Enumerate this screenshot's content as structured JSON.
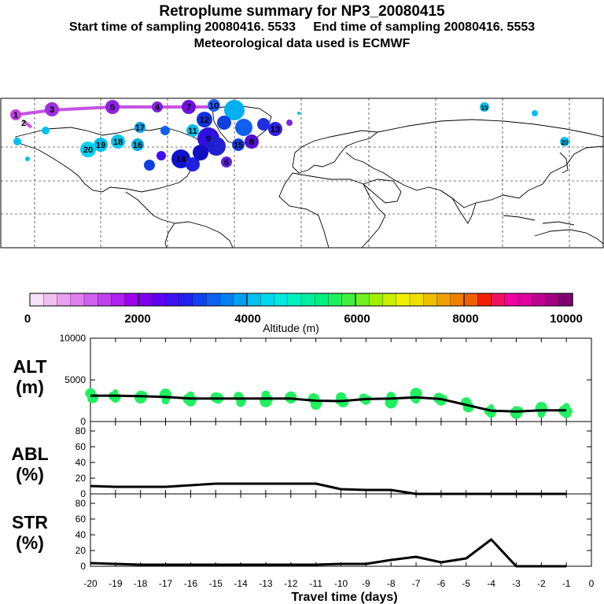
{
  "header": {
    "title": "Retroplume summary for NP3_20080415",
    "start_label": "Start time of sampling 20080416.  5533",
    "end_label": "End time of sampling 20080416.  5553",
    "met_label": "Meteorological data used is ECMWF"
  },
  "map": {
    "labels": [
      {
        "text": "1",
        "color": "#c040e0"
      },
      {
        "text": "3",
        "color": "#a030e0"
      },
      {
        "text": "5",
        "color": "#9020e0"
      },
      {
        "text": "7",
        "color": "#7010e0"
      },
      {
        "text": "10",
        "color": "#2060f0"
      },
      {
        "text": "8",
        "color": "#1010d0"
      },
      {
        "text": "12",
        "color": "#1030e0"
      },
      {
        "text": "11",
        "color": "#00c0f0"
      },
      {
        "text": "16",
        "color": "#00b0e0"
      },
      {
        "text": "18",
        "color": "#00c8f0"
      },
      {
        "text": "19",
        "color": "#00c0f0"
      },
      {
        "text": "20",
        "color": "#00d0f0"
      },
      {
        "text": "14",
        "color": "#1010c0"
      },
      {
        "text": "15",
        "color": "#1040e0"
      },
      {
        "text": "13",
        "color": "#5010d0"
      },
      {
        "text": "9",
        "color": "#2020e0"
      },
      {
        "text": "17",
        "color": "#00a0f0"
      },
      {
        "text": "4",
        "color": "#8020e0"
      },
      {
        "text": "6",
        "color": "#6020e0"
      },
      {
        "text": "2",
        "color": "#b030e0"
      }
    ]
  },
  "colorbar": {
    "label": "Altitude (m)",
    "ticks": [
      "0",
      "2000",
      "4000",
      "6000",
      "8000",
      "10000"
    ],
    "colors": [
      "#f8e0f8",
      "#f0c0f0",
      "#e8a0f0",
      "#e080f0",
      "#d060f0",
      "#c040f0",
      "#b020f0",
      "#a000f0",
      "#8000f0",
      "#6000f0",
      "#4010f0",
      "#2020f0",
      "#1040f0",
      "#1060f0",
      "#0080f0",
      "#00a0f0",
      "#00c0f0",
      "#00d8f0",
      "#00e8e0",
      "#00f0c0",
      "#00f0a0",
      "#00f080",
      "#20f060",
      "#40f040",
      "#70f020",
      "#a0f000",
      "#c8f000",
      "#f0f000",
      "#f0e000",
      "#f0c000",
      "#f0a000",
      "#f08000",
      "#f06000",
      "#f02000",
      "#f01060",
      "#f000a0",
      "#e000a0",
      "#c00090",
      "#a00080",
      "#800070"
    ],
    "ymax": 10000
  },
  "chart_data": [
    {
      "type": "line",
      "panel": "ALT",
      "ylabel": "ALT\n(m)",
      "ylabel_line1": "ALT",
      "ylabel_line2": "(m)",
      "ylim": [
        0,
        10000
      ],
      "yticks": [
        "0",
        "5000",
        "10000"
      ],
      "x": [
        -20,
        -19,
        -18,
        -17,
        -16,
        -15,
        -14,
        -13,
        -12,
        -11,
        -10,
        -9,
        -8,
        -7,
        -6,
        -5,
        -4,
        -3,
        -2,
        -1
      ],
      "values": [
        3100,
        3100,
        3050,
        2950,
        2750,
        2750,
        2750,
        2750,
        2750,
        2500,
        2450,
        2700,
        2750,
        2900,
        2700,
        2000,
        1300,
        1200,
        1350,
        1350
      ],
      "dot_color": "#20f060"
    },
    {
      "type": "line",
      "panel": "ABL",
      "ylabel_line1": "ABL",
      "ylabel_line2": "(%)",
      "ylim": [
        0,
        90
      ],
      "yticks": [
        "0",
        "20",
        "40",
        "60",
        "80"
      ],
      "x": [
        -20,
        -19,
        -18,
        -17,
        -16,
        -15,
        -14,
        -13,
        -12,
        -11,
        -10,
        -9,
        -8,
        -7,
        -6,
        -5,
        -4,
        -3,
        -2,
        -1
      ],
      "values": [
        10,
        9,
        9,
        9,
        11,
        13,
        13,
        13,
        13,
        13,
        6,
        5,
        5,
        0,
        0,
        0,
        0,
        0,
        0,
        0
      ]
    },
    {
      "type": "line",
      "panel": "STR",
      "ylabel_line1": "STR",
      "ylabel_line2": "(%)",
      "ylim": [
        0,
        90
      ],
      "yticks": [
        "0",
        "20",
        "40",
        "60",
        "80"
      ],
      "x": [
        -20,
        -19,
        -18,
        -17,
        -16,
        -15,
        -14,
        -13,
        -12,
        -11,
        -10,
        -9,
        -8,
        -7,
        -6,
        -5,
        -4,
        -3,
        -2,
        -1
      ],
      "values": [
        4,
        3,
        2,
        2,
        2,
        2,
        2,
        2,
        2,
        2,
        3,
        3,
        8,
        12,
        5,
        10,
        34,
        0,
        0,
        0
      ],
      "xlabel": "Travel time (days)",
      "xticks": [
        "-20",
        "-19",
        "-18",
        "-17",
        "-16",
        "-15",
        "-14",
        "-13",
        "-12",
        "-11",
        "-10",
        "-9",
        "-8",
        "-7",
        "-6",
        "-5",
        "-4",
        "-3",
        "-2",
        "-1",
        "0"
      ]
    }
  ]
}
